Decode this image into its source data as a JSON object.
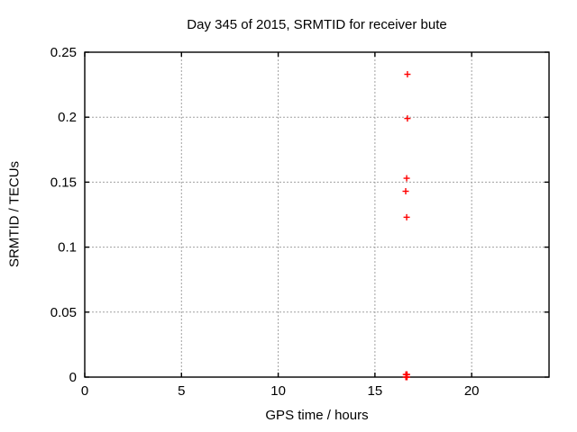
{
  "figure": {
    "background": "#ffffff"
  },
  "chart_data": {
    "type": "scatter",
    "title": "Day 345 of 2015, SRMTID for receiver bute",
    "xlabel": "GPS time / hours",
    "ylabel": "SRMTID / TECUs",
    "xlim": [
      0,
      24
    ],
    "ylim": [
      0,
      0.25
    ],
    "xticks": {
      "values": [
        0,
        5,
        10,
        15,
        20
      ],
      "labels": [
        "0",
        "5",
        "10",
        "15",
        "20"
      ]
    },
    "yticks": {
      "values": [
        0,
        0.05,
        0.1,
        0.15,
        0.2,
        0.25
      ],
      "labels": [
        "0",
        "0.05",
        "0.1",
        "0.15",
        "0.2",
        "0.25"
      ]
    },
    "grid": true,
    "legend": "none",
    "colors": {
      "axis": "#000000",
      "grid": "#a0a0a0",
      "text": "#000000"
    },
    "series": [
      {
        "name": "SRMTID",
        "marker": "plus",
        "color": "#ff0000",
        "points": [
          [
            16.68,
            0.233
          ],
          [
            16.68,
            0.199
          ],
          [
            16.64,
            0.153
          ],
          [
            16.59,
            0.143
          ],
          [
            16.64,
            0.123
          ],
          [
            16.6,
            0.002
          ],
          [
            16.63,
            0.002
          ],
          [
            16.66,
            0.002
          ],
          [
            16.6,
            0.0
          ],
          [
            16.63,
            0.0
          ],
          [
            16.66,
            0.0
          ]
        ]
      }
    ]
  }
}
